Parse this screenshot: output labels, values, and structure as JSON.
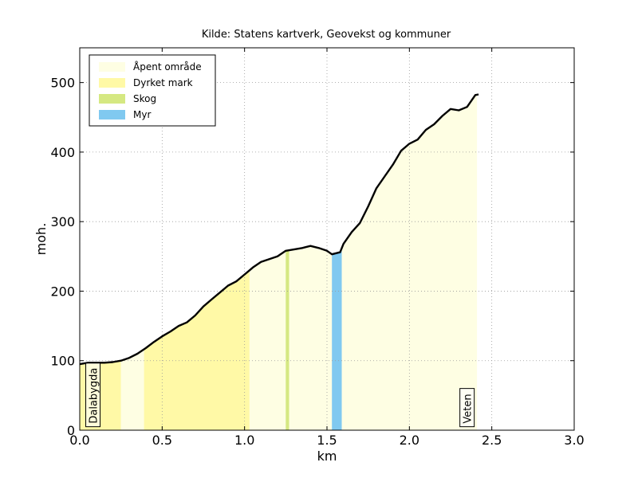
{
  "chart_data": {
    "type": "area",
    "title": "Kilde: Statens kartverk, Geovekst og kommuner",
    "xlabel": "km",
    "ylabel": "moh.",
    "xlim": [
      0,
      3.0
    ],
    "ylim": [
      0,
      550
    ],
    "xticks": [
      "0.0",
      "0.5",
      "1.0",
      "1.5",
      "2.0",
      "2.5",
      "3.0"
    ],
    "yticks": [
      "0",
      "100",
      "200",
      "300",
      "400",
      "500"
    ],
    "grid": true,
    "legend_position": "top-left",
    "legend": [
      {
        "label": "Åpent område",
        "color": "#fefee3"
      },
      {
        "label": "Dyrket mark",
        "color": "#fff9a6"
      },
      {
        "label": "Skog",
        "color": "#d5e882"
      },
      {
        "label": "Myr",
        "color": "#80c9f0"
      }
    ],
    "land_cover_segments": [
      {
        "type": "Dyrket mark",
        "x0": 0.0,
        "x1": 0.25
      },
      {
        "type": "Åpent område",
        "x0": 0.25,
        "x1": 0.39
      },
      {
        "type": "Dyrket mark",
        "x0": 0.39,
        "x1": 1.03
      },
      {
        "type": "Åpent område",
        "x0": 1.03,
        "x1": 1.25
      },
      {
        "type": "Skog",
        "x0": 1.25,
        "x1": 1.27
      },
      {
        "type": "Åpent område",
        "x0": 1.27,
        "x1": 1.53
      },
      {
        "type": "Myr",
        "x0": 1.53,
        "x1": 1.59
      },
      {
        "type": "Åpent område",
        "x0": 1.59,
        "x1": 2.41
      }
    ],
    "elevation_profile": {
      "x": [
        0.0,
        0.05,
        0.1,
        0.15,
        0.2,
        0.25,
        0.3,
        0.35,
        0.4,
        0.45,
        0.5,
        0.55,
        0.6,
        0.65,
        0.7,
        0.75,
        0.8,
        0.85,
        0.9,
        0.95,
        1.0,
        1.03,
        1.05,
        1.1,
        1.15,
        1.2,
        1.25,
        1.3,
        1.35,
        1.4,
        1.45,
        1.5,
        1.53,
        1.58,
        1.6,
        1.65,
        1.7,
        1.75,
        1.8,
        1.85,
        1.9,
        1.95,
        2.0,
        2.05,
        2.1,
        2.15,
        2.2,
        2.25,
        2.3,
        2.35,
        2.4,
        2.42
      ],
      "y": [
        95,
        97,
        97,
        97,
        98,
        100,
        104,
        110,
        118,
        127,
        135,
        142,
        150,
        155,
        165,
        178,
        188,
        198,
        208,
        214,
        224,
        230,
        234,
        242,
        246,
        250,
        258,
        260,
        262,
        265,
        262,
        258,
        253,
        256,
        268,
        285,
        298,
        322,
        348,
        365,
        382,
        402,
        412,
        418,
        432,
        440,
        452,
        462,
        460,
        465,
        482,
        483
      ]
    },
    "annotations": [
      {
        "text": "Dalabygda",
        "x": 0.08,
        "y": 5
      },
      {
        "text": "Veten",
        "x": 2.35,
        "y": 5
      }
    ]
  }
}
